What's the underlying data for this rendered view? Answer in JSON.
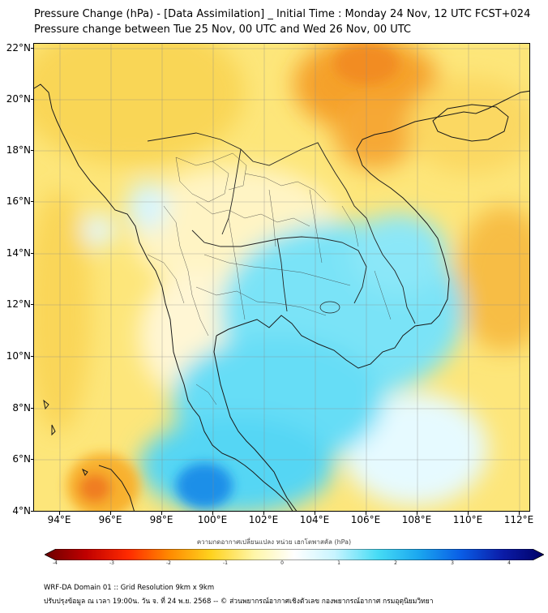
{
  "header": {
    "title_line1": "Pressure Change (hPa) - [Data Assimilation] _ Initial Time : Monday 24 Nov, 12 UTC FCST+024",
    "title_line2": "Pressure change between Tue 25 Nov, 00 UTC and Wed 26 Nov, 00 UTC"
  },
  "map": {
    "lat_labels": [
      "22°N",
      "20°N",
      "18°N",
      "16°N",
      "14°N",
      "12°N",
      "10°N",
      "8°N",
      "6°N",
      "4°N"
    ],
    "lon_labels": [
      "94°E",
      "96°E",
      "98°E",
      "100°E",
      "102°E",
      "104°E",
      "106°E",
      "108°E",
      "110°E",
      "112°E"
    ],
    "lat_range": [
      4,
      22.3
    ],
    "lon_range": [
      93,
      112.4
    ],
    "grid": true
  },
  "colorbar": {
    "label": "ความกดอากาศเปลี่ยนแปลง หน่วย เฮกโตพาสคัล (hPa)",
    "ticks": [
      "-4",
      "-3",
      "-2",
      "-1",
      "0",
      "1",
      "2",
      "3",
      "4"
    ],
    "range": [
      -4,
      4
    ],
    "colors": [
      "#6b0000",
      "#c00000",
      "#ff2a00",
      "#ff8a00",
      "#ffd21e",
      "#fff6a8",
      "#ffffff",
      "#c8f4ff",
      "#46dcf5",
      "#1aa6ef",
      "#0a5ee6",
      "#0b1ca8",
      "#000066"
    ]
  },
  "footer": {
    "line1": "WRF-DA Domain 01 :: Grid Resolution 9km x 9km",
    "line2": "ปรับปรุงข้อมูล ณ เวลา 19:00น. วัน จ. ที่ 24 พ.ย. 2568 -- © ส่วนพยากรณ์อากาศเชิงตัวเลข กองพยากรณ์อากาศ กรมอุตุนิยมวิทยา"
  }
}
